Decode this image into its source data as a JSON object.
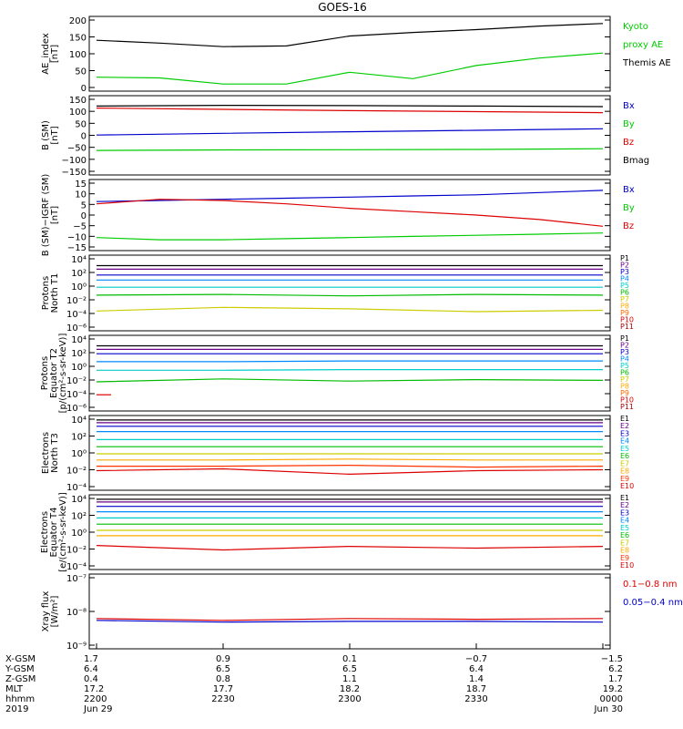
{
  "title": "GOES-16",
  "panels": [
    {
      "ylabel": [
        "AE_index",
        "[nT]"
      ],
      "ticks": [
        "200",
        "150",
        "100",
        "50",
        "0"
      ],
      "legend": [
        {
          "text": "Kyoto",
          "color": "#00cc00"
        },
        {
          "text": "proxy AE",
          "color": "#00cc00"
        },
        {
          "text": "Themis AE",
          "color": "#000000"
        }
      ]
    },
    {
      "ylabel": [
        "B (SM)",
        "[nT]"
      ],
      "ticks": [
        "150",
        "100",
        "50",
        "0",
        "−50",
        "−100",
        "−150"
      ],
      "legend": [
        {
          "text": "Bx",
          "color": "#0000cc"
        },
        {
          "text": "By",
          "color": "#00cc00"
        },
        {
          "text": "Bz",
          "color": "#dd0000"
        },
        {
          "text": "Bmag",
          "color": "#000000"
        }
      ]
    },
    {
      "ylabel": [
        "B (SM)−IGRF (SM)",
        "[nT]"
      ],
      "ticks": [
        "15",
        "10",
        "5",
        "0",
        "−5",
        "−10",
        "−15"
      ],
      "legend": [
        {
          "text": "Bx",
          "color": "#0000cc"
        },
        {
          "text": "By",
          "color": "#00cc00"
        },
        {
          "text": "Bz",
          "color": "#dd0000"
        }
      ]
    },
    {
      "ylabel": [
        "Protons",
        "North T1"
      ],
      "ticks": [
        "10⁴",
        "10²",
        "10⁰",
        "10⁻²",
        "10⁻⁴",
        "10⁻⁶"
      ],
      "legend": [
        {
          "text": "P1",
          "color": "#000000"
        },
        {
          "text": "P2",
          "color": "#6a008a"
        },
        {
          "text": "P3",
          "color": "#0000cc"
        },
        {
          "text": "P4",
          "color": "#0088ff"
        },
        {
          "text": "P5",
          "color": "#00cccc"
        },
        {
          "text": "P6",
          "color": "#00bb00"
        },
        {
          "text": "P7",
          "color": "#cccc00"
        },
        {
          "text": "P8",
          "color": "#ffaa00"
        },
        {
          "text": "P9",
          "color": "#ff6600"
        },
        {
          "text": "P10",
          "color": "#dd0000"
        },
        {
          "text": "P11",
          "color": "#aa0000"
        }
      ]
    },
    {
      "ylabel": [
        "Protons",
        "Equator T2",
        "[p/(cm²-s-sr-keV)]"
      ],
      "ticks": [
        "10⁴",
        "10²",
        "10⁰",
        "10⁻²",
        "10⁻⁴",
        "10⁻⁶"
      ],
      "legend": [
        {
          "text": "P1",
          "color": "#000000"
        },
        {
          "text": "P2",
          "color": "#6a008a"
        },
        {
          "text": "P3",
          "color": "#0000cc"
        },
        {
          "text": "P4",
          "color": "#0088ff"
        },
        {
          "text": "P5",
          "color": "#00cccc"
        },
        {
          "text": "P6",
          "color": "#00bb00"
        },
        {
          "text": "P7",
          "color": "#cccc00"
        },
        {
          "text": "P8",
          "color": "#ffaa00"
        },
        {
          "text": "P9",
          "color": "#ff6600"
        },
        {
          "text": "P10",
          "color": "#dd0000"
        },
        {
          "text": "P11",
          "color": "#aa0000"
        }
      ]
    },
    {
      "ylabel": [
        "Electrons",
        "North T3"
      ],
      "ticks": [
        "10⁴",
        "10²",
        "10⁰",
        "10⁻²",
        "10⁻⁴"
      ],
      "legend": [
        {
          "text": "E1",
          "color": "#000000"
        },
        {
          "text": "E2",
          "color": "#6a008a"
        },
        {
          "text": "E3",
          "color": "#0000cc"
        },
        {
          "text": "E4",
          "color": "#0088ff"
        },
        {
          "text": "E5",
          "color": "#00cccc"
        },
        {
          "text": "E6",
          "color": "#00bb00"
        },
        {
          "text": "E7",
          "color": "#cccc00"
        },
        {
          "text": "E8",
          "color": "#ffaa00"
        },
        {
          "text": "E9",
          "color": "#ff3300"
        },
        {
          "text": "E10",
          "color": "#dd0000"
        }
      ]
    },
    {
      "ylabel": [
        "Electrons",
        "Equator T4",
        "[e/(cm²-s-sr-keV)]"
      ],
      "ticks": [
        "10⁴",
        "10²",
        "10⁰",
        "10⁻²",
        "10⁻⁴"
      ],
      "legend": [
        {
          "text": "E1",
          "color": "#000000"
        },
        {
          "text": "E2",
          "color": "#6a008a"
        },
        {
          "text": "E3",
          "color": "#0000cc"
        },
        {
          "text": "E4",
          "color": "#0088ff"
        },
        {
          "text": "E5",
          "color": "#00cccc"
        },
        {
          "text": "E6",
          "color": "#00bb00"
        },
        {
          "text": "E7",
          "color": "#cccc00"
        },
        {
          "text": "E8",
          "color": "#ffaa00"
        },
        {
          "text": "E9",
          "color": "#ff3300"
        },
        {
          "text": "E10",
          "color": "#dd0000"
        }
      ]
    },
    {
      "ylabel": [
        "Xray flux",
        "[W/m²]"
      ],
      "ticks": [
        "10⁻⁷",
        "10⁻⁸",
        "10⁻⁹"
      ],
      "legend": [
        {
          "text": "0.1−0.8 nm",
          "color": "#dd0000"
        },
        {
          "text": "0.05−0.4 nm",
          "color": "#0000cc"
        }
      ]
    }
  ],
  "footer": {
    "row_labels": [
      "X-GSM",
      "Y-GSM",
      "Z-GSM",
      "MLT",
      "hhmm",
      "2019"
    ],
    "columns": [
      {
        "values": [
          "1.7",
          "6.4",
          "0.4",
          "17.2",
          "2200",
          "Jun 29"
        ]
      },
      {
        "values": [
          "0.9",
          "6.5",
          "0.8",
          "17.7",
          "2230",
          ""
        ]
      },
      {
        "values": [
          "0.1",
          "6.5",
          "1.1",
          "18.2",
          "2300",
          ""
        ]
      },
      {
        "values": [
          "−0.7",
          "6.4",
          "1.4",
          "18.7",
          "2330",
          ""
        ]
      },
      {
        "values": [
          "−1.5",
          "6.2",
          "1.7",
          "19.2",
          "0000",
          "Jun 30"
        ]
      }
    ]
  },
  "chart_data": [
    {
      "type": "line",
      "title": "GOES-16",
      "ylabel": "AE_index [nT]",
      "ylim": [
        0,
        200
      ],
      "x": [
        "2200",
        "2215",
        "2230",
        "2245",
        "2300",
        "2315",
        "2330",
        "2345",
        "0000"
      ],
      "series": [
        {
          "name": "Kyoto proxy AE",
          "color": "#00cc00",
          "values": [
            34,
            32,
            15,
            15,
            48,
            30,
            67,
            88,
            102
          ]
        },
        {
          "name": "Themis AE",
          "color": "#000000",
          "values": [
            138,
            130,
            120,
            122,
            150,
            160,
            168,
            178,
            185
          ]
        }
      ]
    },
    {
      "type": "line",
      "ylabel": "B (SM) [nT]",
      "ylim": [
        -150,
        150
      ],
      "x": [
        "2200",
        "2230",
        "2300",
        "2330",
        "0000"
      ],
      "series": [
        {
          "name": "Bx",
          "color": "#0000cc",
          "values": [
            1,
            8,
            14,
            20,
            26
          ]
        },
        {
          "name": "By",
          "color": "#00cc00",
          "values": [
            -60,
            -58,
            -57,
            -56,
            -53
          ]
        },
        {
          "name": "Bz",
          "color": "#dd0000",
          "values": [
            108,
            103,
            98,
            94,
            90
          ]
        },
        {
          "name": "Bmag",
          "color": "#000000",
          "values": [
            116,
            119,
            118,
            116,
            114
          ]
        }
      ]
    },
    {
      "type": "line",
      "ylabel": "B (SM)-IGRF (SM) [nT]",
      "ylim": [
        -15,
        15
      ],
      "x": [
        "2200",
        "2215",
        "2230",
        "2245",
        "2300",
        "2315",
        "2330",
        "2345",
        "0000"
      ],
      "series": [
        {
          "name": "Bx",
          "color": "#0000cc",
          "values": [
            6,
            6.5,
            7,
            7.5,
            8,
            8.5,
            9,
            10,
            11
          ]
        },
        {
          "name": "By",
          "color": "#00cc00",
          "values": [
            -10,
            -11,
            -11,
            -10.5,
            -10,
            -9.5,
            -9,
            -8.5,
            -8
          ]
        },
        {
          "name": "Bz",
          "color": "#dd0000",
          "values": [
            5,
            7,
            6.5,
            5,
            3,
            1.5,
            0,
            -2,
            -5
          ]
        }
      ]
    },
    {
      "type": "line",
      "ylabel": "Protons North T1",
      "ylim": [
        -6,
        4
      ],
      "x": [
        "2200",
        "2230",
        "2300",
        "2330",
        "0000"
      ],
      "series": [
        {
          "name": "P1",
          "color": "#000000",
          "values": [
            2.8,
            2.8,
            2.8,
            2.8,
            2.8
          ]
        },
        {
          "name": "P2",
          "color": "#6a008a",
          "values": [
            2.3,
            2.3,
            2.3,
            2.3,
            2.3
          ]
        },
        {
          "name": "P3",
          "color": "#0000cc",
          "values": [
            1.5,
            1.5,
            1.5,
            1.5,
            1.5
          ]
        },
        {
          "name": "P4",
          "color": "#0088ff",
          "values": [
            0.8,
            0.8,
            0.8,
            0.8,
            0.8
          ]
        },
        {
          "name": "P5",
          "color": "#00cccc",
          "values": [
            -0.2,
            -0.2,
            -0.2,
            -0.2,
            -0.2
          ]
        },
        {
          "name": "P6",
          "color": "#00bb00",
          "values": [
            -1.3,
            -1.2,
            -1.4,
            -1.2,
            -1.3
          ]
        },
        {
          "name": "P7",
          "color": "#cccc00",
          "values": [
            -3.5,
            -3.0,
            -3.2,
            -3.6,
            -3.4
          ]
        }
      ]
    },
    {
      "type": "line",
      "ylabel": "Protons Equator T2 [p/(cm²-s-sr-keV)]",
      "ylim": [
        -6,
        4
      ],
      "x": [
        "2200",
        "2230",
        "2300",
        "2330",
        "0000"
      ],
      "series": [
        {
          "name": "P1",
          "color": "#000000",
          "values": [
            2.8,
            2.8,
            2.8,
            2.8,
            2.8
          ]
        },
        {
          "name": "P2",
          "color": "#6a008a",
          "values": [
            2.3,
            2.3,
            2.3,
            2.3,
            2.3
          ]
        },
        {
          "name": "P3",
          "color": "#0000cc",
          "values": [
            1.7,
            1.7,
            1.7,
            1.7,
            1.7
          ]
        },
        {
          "name": "P4",
          "color": "#0088ff",
          "values": [
            0.6,
            0.6,
            0.7,
            0.7,
            0.7
          ]
        },
        {
          "name": "P5",
          "color": "#00cccc",
          "values": [
            -0.6,
            -0.6,
            -0.5,
            -0.5,
            -0.5
          ]
        },
        {
          "name": "P6",
          "color": "#00bb00",
          "values": [
            -2.2,
            -1.8,
            -2.1,
            -1.9,
            -2.0
          ]
        },
        {
          "name": "P10",
          "color": "#dd0000",
          "values": [
            -4.0,
            null,
            null,
            null,
            null
          ]
        }
      ]
    },
    {
      "type": "line",
      "ylabel": "Electrons North T3",
      "ylim": [
        -4,
        4
      ],
      "x": [
        "2200",
        "2230",
        "2300",
        "2330",
        "0000"
      ],
      "series": [
        {
          "name": "E1",
          "color": "#000000",
          "values": [
            3.7,
            3.7,
            3.7,
            3.7,
            3.7
          ]
        },
        {
          "name": "E2",
          "color": "#6a008a",
          "values": [
            3.4,
            3.4,
            3.4,
            3.4,
            3.4
          ]
        },
        {
          "name": "E3",
          "color": "#0000cc",
          "values": [
            3.0,
            3.0,
            3.0,
            3.0,
            3.0
          ]
        },
        {
          "name": "E4",
          "color": "#0088ff",
          "values": [
            2.4,
            2.4,
            2.4,
            2.4,
            2.4
          ]
        },
        {
          "name": "E5",
          "color": "#00cccc",
          "values": [
            1.5,
            1.5,
            1.5,
            1.5,
            1.5
          ]
        },
        {
          "name": "E6",
          "color": "#00bb00",
          "values": [
            0.7,
            0.7,
            0.7,
            0.7,
            0.7
          ]
        },
        {
          "name": "E7",
          "color": "#cccc00",
          "values": [
            -0.1,
            -0.1,
            -0.1,
            -0.1,
            -0.1
          ]
        },
        {
          "name": "E8",
          "color": "#ffaa00",
          "values": [
            -0.8,
            -0.8,
            -0.7,
            -0.8,
            -0.8
          ]
        },
        {
          "name": "E9",
          "color": "#ff3300",
          "values": [
            -1.5,
            -1.5,
            -1.4,
            -1.6,
            -1.5
          ]
        },
        {
          "name": "E10",
          "color": "#dd0000",
          "values": [
            -2.0,
            -1.8,
            -2.4,
            -2.0,
            -1.9
          ]
        }
      ]
    },
    {
      "type": "line",
      "ylabel": "Electrons Equator T4 [e/(cm²-s-sr-keV)]",
      "ylim": [
        -4,
        4
      ],
      "x": [
        "2200",
        "2230",
        "2300",
        "2330",
        "0000"
      ],
      "series": [
        {
          "name": "E1",
          "color": "#000000",
          "values": [
            3.7,
            3.7,
            3.7,
            3.7,
            3.7
          ]
        },
        {
          "name": "E2",
          "color": "#6a008a",
          "values": [
            3.4,
            3.4,
            3.4,
            3.4,
            3.4
          ]
        },
        {
          "name": "E3",
          "color": "#0000cc",
          "values": [
            2.9,
            2.9,
            2.9,
            2.9,
            2.9
          ]
        },
        {
          "name": "E4",
          "color": "#0088ff",
          "values": [
            2.3,
            2.3,
            2.3,
            2.3,
            2.3
          ]
        },
        {
          "name": "E5",
          "color": "#00cccc",
          "values": [
            1.6,
            1.6,
            1.6,
            1.6,
            1.6
          ]
        },
        {
          "name": "E6",
          "color": "#00bb00",
          "values": [
            0.9,
            0.9,
            0.9,
            0.9,
            0.9
          ]
        },
        {
          "name": "E7",
          "color": "#cccc00",
          "values": [
            0.2,
            0.2,
            0.2,
            0.2,
            0.2
          ]
        },
        {
          "name": "E8",
          "color": "#ffaa00",
          "values": [
            -0.4,
            -0.4,
            -0.4,
            -0.4,
            -0.4
          ]
        },
        {
          "name": "E10",
          "color": "#dd0000",
          "values": [
            -1.5,
            -2.0,
            -1.6,
            -1.8,
            -1.6
          ]
        }
      ]
    },
    {
      "type": "line",
      "ylabel": "Xray flux [W/m²]",
      "ylim": [
        -9,
        -7
      ],
      "x": [
        "2200",
        "2230",
        "2300",
        "2330",
        "0000"
      ],
      "series": [
        {
          "name": "0.1-0.8 nm",
          "color": "#dd0000",
          "values": [
            -8.2,
            -8.25,
            -8.2,
            -8.22,
            -8.2
          ]
        },
        {
          "name": "0.05-0.4 nm",
          "color": "#0000cc",
          "values": [
            -8.25,
            -8.3,
            -8.28,
            -8.28,
            -8.3
          ]
        }
      ]
    }
  ]
}
